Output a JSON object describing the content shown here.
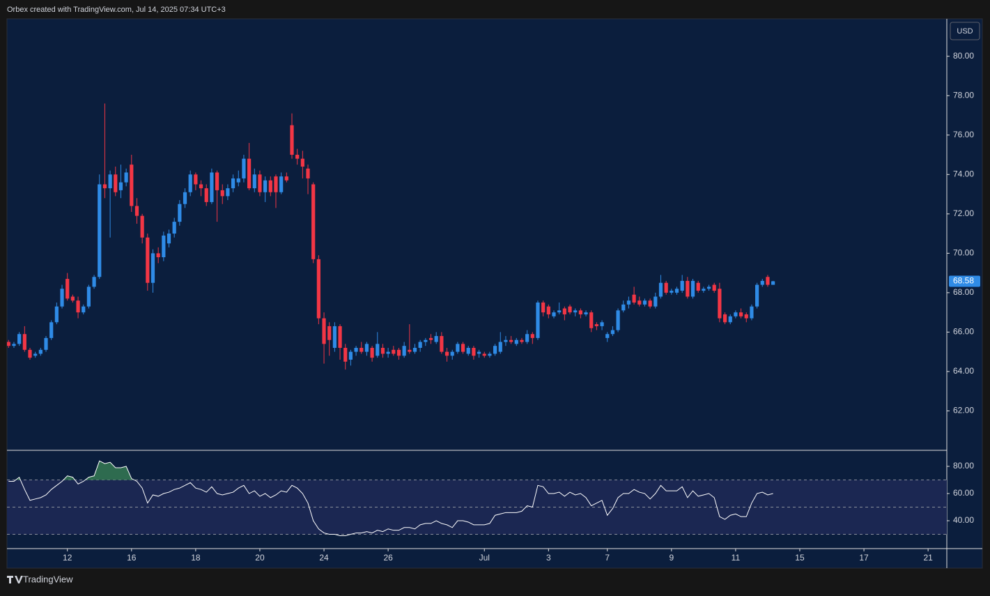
{
  "header": "Orbex created with TradingView.com, Jul 14, 2025 07:34 UTC+3",
  "footer": "TradingView",
  "currency": "USD",
  "chart_data": [
    {
      "type": "candlestick",
      "up_color": "#2f8be6",
      "down_color": "#f23645",
      "xlim": [
        -0.3,
        175.5
      ],
      "ylim": [
        60,
        81.9
      ],
      "yticks": [
        {
          "value": 62,
          "label": "62.00"
        },
        {
          "value": 64,
          "label": "64.00"
        },
        {
          "value": 66,
          "label": "66.00"
        },
        {
          "value": 68,
          "label": "68.00"
        },
        {
          "value": 70,
          "label": "70.00"
        },
        {
          "value": 72,
          "label": "72.00"
        },
        {
          "value": 74,
          "label": "74.00"
        },
        {
          "value": 76,
          "label": "76.00"
        },
        {
          "value": 78,
          "label": "78.00"
        },
        {
          "value": 80,
          "label": "80.00"
        }
      ],
      "open": [
        65.5,
        65.3,
        65.4,
        65.9,
        65.1,
        64.8,
        64.9,
        65.1,
        65.7,
        66.5,
        67.3,
        68.7,
        67.8,
        67.6,
        67.0,
        67.3,
        68.3,
        68.8,
        73.5,
        73.3,
        74.0,
        73.2,
        73.6,
        74.5,
        72.4,
        71.9,
        70.8,
        68.5,
        70.0,
        69.8,
        70.5,
        71.0,
        71.6,
        72.5,
        73.1,
        74.0,
        73.5,
        73.3,
        72.6,
        74.1,
        73.2,
        72.9,
        73.3,
        73.6,
        73.8,
        74.8,
        73.3,
        74.0,
        73.1,
        73.7,
        73.9,
        73.1,
        73.9,
        76.5,
        75.0,
        74.8,
        74.3,
        73.5,
        69.7,
        66.7,
        66.3,
        65.2,
        66.3,
        65.2,
        64.6,
        65.0,
        65.2,
        65.0,
        65.2,
        64.8,
        65.2,
        64.9,
        65.1,
        65.1,
        64.8,
        65.1,
        65.0,
        65.2,
        65.5,
        65.7,
        65.5,
        65.8,
        65.0,
        64.8,
        65.0,
        65.4,
        64.9,
        65.2,
        64.9,
        64.9,
        64.8,
        64.9,
        65.0,
        65.5,
        65.6,
        65.4,
        65.6,
        65.5,
        65.9,
        65.7,
        67.5,
        67.3,
        66.8,
        67.0,
        67.2,
        67.3,
        67.0,
        67.1,
        66.9,
        67.0,
        66.4,
        66.3,
        65.7,
        65.9,
        66.1,
        67.1,
        67.4,
        67.9,
        67.6,
        67.4,
        67.6,
        67.3,
        67.8,
        68.5,
        68.0,
        68.0,
        68.1,
        68.6,
        67.8,
        68.5,
        68.1,
        68.2,
        68.4,
        68.2,
        66.9,
        66.5,
        66.8,
        67.0,
        66.9,
        66.7,
        67.3,
        68.4,
        68.8,
        68.4
      ],
      "high": [
        65.6,
        65.5,
        66.0,
        66.3,
        65.2,
        65.0,
        65.2,
        65.8,
        66.6,
        67.5,
        68.4,
        69.0,
        67.9,
        67.8,
        67.4,
        68.4,
        68.9,
        74.0,
        77.6,
        74.2,
        74.4,
        74.5,
        74.3,
        75.0,
        72.8,
        72.0,
        71.0,
        70.2,
        70.3,
        71.1,
        71.2,
        71.8,
        72.7,
        73.3,
        74.2,
        74.1,
        73.7,
        73.5,
        74.3,
        74.2,
        73.5,
        73.5,
        74.0,
        74.2,
        75.0,
        75.6,
        74.3,
        74.2,
        73.9,
        73.9,
        74.0,
        74.1,
        74.1,
        77.1,
        75.3,
        75.2,
        74.5,
        73.6,
        69.9,
        67.0,
        66.5,
        66.5,
        66.4,
        65.4,
        65.1,
        65.3,
        65.5,
        65.5,
        65.3,
        66.0,
        65.4,
        65.2,
        65.3,
        65.2,
        65.5,
        66.4,
        65.4,
        65.6,
        65.7,
        65.9,
        66.0,
        66.0,
        65.2,
        65.1,
        65.5,
        65.5,
        65.3,
        65.3,
        65.1,
        65.0,
        65.0,
        65.4,
        66.0,
        65.8,
        65.8,
        65.7,
        65.7,
        66.1,
        66.0,
        67.6,
        67.6,
        67.4,
        67.1,
        67.5,
        67.3,
        67.4,
        67.2,
        67.2,
        67.1,
        67.1,
        66.5,
        66.6,
        66.0,
        66.3,
        67.2,
        67.6,
        67.8,
        68.3,
        67.8,
        67.7,
        67.7,
        68.0,
        68.9,
        68.6,
        68.2,
        68.3,
        68.9,
        68.8,
        68.7,
        68.6,
        68.3,
        68.4,
        68.5,
        68.5,
        67.0,
        66.9,
        67.1,
        67.2,
        67.0,
        67.4,
        68.5,
        68.7,
        68.9,
        68.6
      ],
      "low": [
        65.2,
        65.2,
        65.3,
        65.0,
        64.6,
        64.7,
        64.8,
        65.0,
        65.6,
        66.4,
        67.2,
        67.6,
        67.5,
        66.7,
        66.9,
        67.2,
        68.2,
        68.7,
        72.8,
        70.8,
        72.9,
        72.8,
        73.4,
        72.1,
        71.5,
        70.5,
        68.1,
        68.0,
        69.5,
        69.6,
        70.3,
        70.8,
        71.4,
        72.3,
        72.9,
        73.2,
        72.9,
        72.4,
        72.5,
        71.6,
        72.5,
        72.7,
        73.1,
        73.4,
        73.6,
        73.2,
        73.1,
        72.9,
        72.6,
        72.9,
        72.3,
        73.0,
        73.6,
        74.8,
        74.5,
        73.8,
        73.0,
        69.5,
        66.4,
        64.4,
        64.8,
        65.0,
        64.6,
        64.1,
        64.3,
        64.8,
        64.9,
        64.8,
        64.5,
        64.7,
        64.7,
        64.7,
        64.8,
        64.6,
        64.7,
        64.9,
        64.9,
        65.0,
        65.3,
        65.4,
        65.4,
        64.9,
        64.5,
        64.6,
        64.9,
        64.9,
        64.8,
        64.6,
        64.7,
        64.7,
        64.7,
        64.8,
        64.9,
        65.3,
        65.4,
        65.3,
        65.4,
        65.4,
        65.4,
        65.6,
        66.8,
        66.7,
        66.7,
        66.9,
        66.6,
        66.9,
        66.8,
        66.7,
        66.8,
        66.0,
        66.1,
        66.1,
        65.5,
        65.8,
        66.0,
        67.0,
        67.2,
        67.4,
        67.3,
        67.3,
        67.2,
        67.2,
        67.7,
        67.9,
        67.9,
        67.9,
        68.0,
        67.7,
        67.7,
        68.0,
        68.0,
        68.1,
        68.0,
        66.5,
        66.4,
        66.4,
        66.7,
        66.7,
        66.5,
        66.6,
        67.2,
        68.3,
        68.3,
        68.4
      ],
      "close": [
        65.3,
        65.4,
        65.9,
        65.1,
        64.7,
        64.9,
        65.1,
        65.7,
        66.5,
        67.3,
        68.2,
        67.7,
        67.6,
        67.0,
        67.3,
        68.3,
        68.8,
        73.5,
        73.3,
        74.0,
        73.1,
        73.6,
        74.1,
        72.4,
        71.9,
        70.8,
        68.5,
        70.0,
        69.8,
        70.9,
        71.0,
        71.6,
        72.5,
        73.1,
        74.0,
        73.5,
        73.3,
        72.6,
        74.1,
        73.2,
        72.9,
        73.3,
        73.8,
        73.8,
        74.8,
        73.3,
        74.0,
        73.1,
        73.7,
        73.1,
        73.1,
        73.9,
        73.7,
        75.0,
        74.8,
        74.4,
        73.8,
        69.7,
        66.7,
        65.4,
        65.6,
        66.3,
        65.2,
        64.5,
        65.0,
        65.2,
        65.0,
        65.4,
        64.7,
        65.4,
        64.9,
        65.0,
        64.9,
        64.8,
        65.3,
        65.0,
        65.2,
        65.5,
        65.6,
        65.6,
        65.8,
        65.0,
        64.8,
        65.0,
        65.4,
        65.0,
        65.2,
        64.8,
        65.0,
        64.8,
        64.9,
        65.3,
        65.5,
        65.6,
        65.5,
        65.6,
        65.5,
        65.9,
        65.7,
        67.5,
        67.0,
        66.9,
        67.0,
        67.1,
        66.9,
        67.0,
        67.1,
        66.9,
        67.0,
        66.2,
        66.3,
        66.5,
        65.9,
        66.1,
        67.1,
        67.4,
        67.6,
        67.5,
        67.4,
        67.6,
        67.3,
        67.8,
        68.5,
        68.0,
        68.1,
        68.2,
        68.6,
        67.8,
        68.6,
        68.1,
        68.2,
        68.3,
        68.1,
        66.7,
        66.5,
        66.8,
        67.0,
        66.8,
        66.7,
        67.3,
        68.4,
        68.6,
        68.4,
        68.58
      ]
    },
    {
      "type": "line",
      "color": "#ffffff",
      "band_color": "#1b2752",
      "overbought_color": "#2e6b4f",
      "xlim": [
        -0.3,
        175.5
      ],
      "ylim": [
        19.5,
        91.8
      ],
      "yticks": [
        {
          "value": 40,
          "label": "40.00"
        },
        {
          "value": 60,
          "label": "60.00"
        },
        {
          "value": 80,
          "label": "80.00"
        }
      ],
      "upper": 70,
      "middle": 50,
      "lower": 30,
      "xticks": [
        {
          "value": 11,
          "label": "12"
        },
        {
          "value": 23,
          "label": "16"
        },
        {
          "value": 35,
          "label": "18"
        },
        {
          "value": 47,
          "label": "20"
        },
        {
          "value": 59,
          "label": "24"
        },
        {
          "value": 71,
          "label": "26"
        },
        {
          "value": 89,
          "label": "Jul"
        },
        {
          "value": 101,
          "label": "3"
        },
        {
          "value": 112,
          "label": "7"
        },
        {
          "value": 124,
          "label": "9"
        },
        {
          "value": 136,
          "label": "11"
        },
        {
          "value": 148,
          "label": "15"
        },
        {
          "value": 160,
          "label": "17"
        },
        {
          "value": 172,
          "label": "21"
        }
      ],
      "values": [
        69,
        69,
        72,
        63,
        55,
        56,
        57,
        59,
        63,
        66,
        69,
        73,
        72,
        67,
        69,
        72,
        73,
        84,
        82,
        83,
        79,
        79,
        80,
        71,
        69,
        64,
        53,
        59,
        58,
        60,
        61,
        63,
        64,
        66,
        68,
        64,
        63,
        61,
        65,
        60,
        59,
        60,
        61,
        64,
        66,
        60,
        62,
        58,
        60,
        57,
        59,
        62,
        61,
        66,
        64,
        60,
        53,
        40,
        34,
        31,
        30,
        30,
        29,
        29,
        30,
        31,
        31,
        32,
        31,
        33,
        32,
        34,
        33,
        33,
        35,
        35,
        34,
        37,
        38,
        38,
        40,
        38,
        37,
        35,
        40,
        40,
        39,
        37,
        37,
        37,
        38,
        44,
        45,
        46,
        46,
        46,
        47,
        51,
        50,
        66,
        65,
        60,
        60,
        61,
        58,
        61,
        59,
        60,
        57,
        51,
        53,
        55,
        44,
        49,
        57,
        60,
        60,
        63,
        61,
        60,
        56,
        60,
        66,
        62,
        62,
        62,
        65,
        57,
        62,
        58,
        59,
        60,
        57,
        43,
        41,
        44,
        45,
        43,
        43,
        53,
        60,
        61,
        59,
        60
      ]
    }
  ]
}
